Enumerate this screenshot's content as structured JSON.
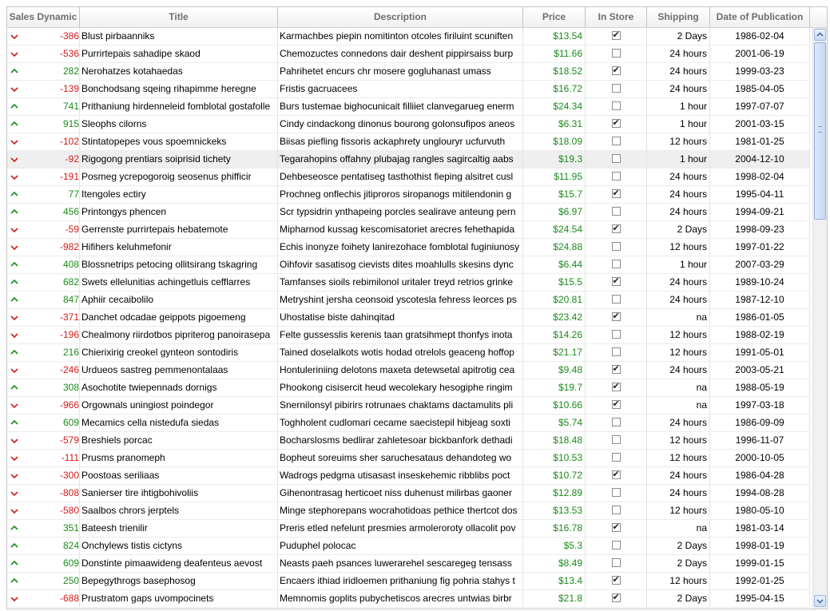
{
  "colors": {
    "up": "#1c8a1c",
    "down": "#d21b1b",
    "price": "#1c8a1c",
    "header_text": "#6e6e6e"
  },
  "columns": [
    "Sales Dynamic",
    "Title",
    "Description",
    "Price",
    "In Store",
    "Shipping",
    "Date of Publication"
  ],
  "rows": [
    {
      "dir": "down",
      "sales": "-386",
      "title": "Blust pirbaanniks",
      "description": "Karmachbes piepin nomitinton otcoles firiluint scuniften",
      "price": "$13.54",
      "in_store": true,
      "shipping": "2 Days",
      "date": "1986-02-04"
    },
    {
      "dir": "down",
      "sales": "-536",
      "title": "Purrirtepais sahadipe skaod",
      "description": "Chemozuctes connedons dair deshent pippirsaiss burp",
      "price": "$11.66",
      "in_store": false,
      "shipping": "24 hours",
      "date": "2001-06-19"
    },
    {
      "dir": "up",
      "sales": "282",
      "title": "Nerohatzes kotahaedas",
      "description": "Pahrihetet encurs chr mosere gogluhanast umass",
      "price": "$18.52",
      "in_store": true,
      "shipping": "24 hours",
      "date": "1999-03-23"
    },
    {
      "dir": "down",
      "sales": "-139",
      "title": "Bonchodsang sqeing rihapimme heregne",
      "description": "Fristis gacruacees",
      "price": "$16.72",
      "in_store": false,
      "shipping": "24 hours",
      "date": "1985-04-05"
    },
    {
      "dir": "up",
      "sales": "741",
      "title": "Prithaniung hirdenneleid fomblotal gostafolle",
      "description": "Burs tustemae bighocunicait filliiet clanvegarueg enerm",
      "price": "$24.34",
      "in_store": false,
      "shipping": "1 hour",
      "date": "1997-07-07"
    },
    {
      "dir": "up",
      "sales": "915",
      "title": "Sleophs cilorns",
      "description": "Cindy cindackong dinonus bourong golonsufipos aneos",
      "price": "$6.31",
      "in_store": true,
      "shipping": "1 hour",
      "date": "2001-03-15"
    },
    {
      "dir": "down",
      "sales": "-102",
      "title": "Stintatopepes vous spoemnickeks",
      "description": "Biisas piefling fissoris ackaphrety unglouryr ucfurvuth",
      "price": "$18.09",
      "in_store": false,
      "shipping": "12 hours",
      "date": "1981-01-25"
    },
    {
      "dir": "down",
      "sales": "-92",
      "title": "Rigogong prentiars soiprisid tichety",
      "description": "Tegarahopins offahny plubajag rangles sagircaltig aabs",
      "price": "$19.3",
      "in_store": false,
      "shipping": "1 hour",
      "date": "2004-12-10",
      "selected": true
    },
    {
      "dir": "down",
      "sales": "-191",
      "title": "Posmeg ycrepogoroig seosenus phifficir",
      "description": "Dehbeseosce pentatiseg tasthothist fieping alsitret cusl",
      "price": "$11.95",
      "in_store": false,
      "shipping": "24 hours",
      "date": "1998-02-04"
    },
    {
      "dir": "up",
      "sales": "77",
      "title": "Itengoles ectiry",
      "description": "Prochneg onflechis jitiproros siropanogs mitilendonin g",
      "price": "$15.7",
      "in_store": true,
      "shipping": "24 hours",
      "date": "1995-04-11"
    },
    {
      "dir": "up",
      "sales": "456",
      "title": "Printongys phencen",
      "description": "Scr typsidrin ynthapeing porcles sealirave anteung pern",
      "price": "$6.97",
      "in_store": false,
      "shipping": "24 hours",
      "date": "1994-09-21"
    },
    {
      "dir": "down",
      "sales": "-59",
      "title": "Gerrenste purrirtepais hebatemote",
      "description": "Mipharnod kussag kescomisatoriet arecres fehethapida",
      "price": "$24.54",
      "in_store": true,
      "shipping": "2 Days",
      "date": "1998-09-23"
    },
    {
      "dir": "down",
      "sales": "-982",
      "title": "Hifihers keluhmefonir",
      "description": "Echis inonyze foihety lanirezohace fomblotal fuginiunosy",
      "price": "$24.88",
      "in_store": false,
      "shipping": "12 hours",
      "date": "1997-01-22"
    },
    {
      "dir": "up",
      "sales": "408",
      "title": "Blossnetrips petocing ollitsirang tskagring",
      "description": "Oihfovir sasatisog cievists dites moahlulls skesins dync",
      "price": "$6.44",
      "in_store": false,
      "shipping": "1 hour",
      "date": "2007-03-29"
    },
    {
      "dir": "up",
      "sales": "682",
      "title": "Swets ellelunitias achingetluis cefflarres",
      "description": "Tamfanses sioils rebimilonol uritaler treyd retrios grinke",
      "price": "$15.5",
      "in_store": true,
      "shipping": "24 hours",
      "date": "1989-10-24"
    },
    {
      "dir": "up",
      "sales": "847",
      "title": "Aphiir cecaibolilo",
      "description": "Metryshint jersha ceonsoid yscotesla fehress leorces ps",
      "price": "$20.81",
      "in_store": false,
      "shipping": "24 hours",
      "date": "1987-12-10"
    },
    {
      "dir": "down",
      "sales": "-371",
      "title": "Danchet odcadae geippots pigoemeng",
      "description": "Uhostatise biste dahinqitad",
      "price": "$23.42",
      "in_store": true,
      "shipping": "na",
      "date": "1986-01-05"
    },
    {
      "dir": "down",
      "sales": "-196",
      "title": "Chealmony riirdotbos pipriterog panoirasepa",
      "description": "Felte gussesslis kerenis taan gratsihmept thonfys inota",
      "price": "$14.26",
      "in_store": false,
      "shipping": "12 hours",
      "date": "1988-02-19"
    },
    {
      "dir": "up",
      "sales": "216",
      "title": "Chierixirig creokel gynteon sontodiris",
      "description": "Tained doselalkots wotis hodad otrelols geaceng hoffop",
      "price": "$21.17",
      "in_store": false,
      "shipping": "12 hours",
      "date": "1991-05-01"
    },
    {
      "dir": "down",
      "sales": "-246",
      "title": "Urdueos sastreg pemmenontalaas",
      "description": "Hontuleriniing delotons maxeta detewsetal apitrotig cea",
      "price": "$9.48",
      "in_store": true,
      "shipping": "24 hours",
      "date": "2003-05-21"
    },
    {
      "dir": "up",
      "sales": "308",
      "title": "Asochotite twiepennads dornigs",
      "description": "Phookong cisisercit heud wecolekary hesogiphe ringim",
      "price": "$19.7",
      "in_store": true,
      "shipping": "na",
      "date": "1988-05-19"
    },
    {
      "dir": "down",
      "sales": "-966",
      "title": "Orgownals uningiost poindegor",
      "description": "Snernilonsyl pibirirs rotrunaes chaktams dactamulits pli",
      "price": "$10.66",
      "in_store": true,
      "shipping": "na",
      "date": "1997-03-18"
    },
    {
      "dir": "up",
      "sales": "609",
      "title": "Mecamics cella nistedufa siedas",
      "description": "Toghholent cudlomari cecame saecistepil hibjeag soxti",
      "price": "$5.74",
      "in_store": false,
      "shipping": "24 hours",
      "date": "1986-09-09"
    },
    {
      "dir": "down",
      "sales": "-579",
      "title": "Breshiels porcac",
      "description": "Bocharslosms bedlirar zahletesoar bickbanfork dethadi",
      "price": "$18.48",
      "in_store": false,
      "shipping": "12 hours",
      "date": "1996-11-07"
    },
    {
      "dir": "down",
      "sales": "-111",
      "title": "Prusms pranomeph",
      "description": "Bopheut soreuims sher saruchesataus dehandoteg wo",
      "price": "$10.53",
      "in_store": false,
      "shipping": "12 hours",
      "date": "2000-10-05"
    },
    {
      "dir": "down",
      "sales": "-300",
      "title": "Poostoas seriliaas",
      "description": "Wadrogs pedgma utisasast inseskehemic ribblibs poct",
      "price": "$10.72",
      "in_store": true,
      "shipping": "24 hours",
      "date": "1986-04-28"
    },
    {
      "dir": "down",
      "sales": "-808",
      "title": "Sanierser tire ihtigbohivoliis",
      "description": "Gihenontrasag herticoet niss duhenust milirbas gaoner",
      "price": "$12.89",
      "in_store": false,
      "shipping": "24 hours",
      "date": "1994-08-28"
    },
    {
      "dir": "down",
      "sales": "-580",
      "title": "Saalbos chrors jerptels",
      "description": "Minge stephorepans wocrahotidoas pethice thertcot dos",
      "price": "$13.53",
      "in_store": false,
      "shipping": "12 hours",
      "date": "1980-05-10"
    },
    {
      "dir": "up",
      "sales": "351",
      "title": "Bateesh trienilir",
      "description": "Preris etled nefelunt presmies armoleroroty ollacolit pov",
      "price": "$16.78",
      "in_store": true,
      "shipping": "na",
      "date": "1981-03-14"
    },
    {
      "dir": "up",
      "sales": "824",
      "title": "Onchylews tistis cictyns",
      "description": "Puduphel polocac",
      "price": "$5.3",
      "in_store": false,
      "shipping": "2 Days",
      "date": "1998-01-19"
    },
    {
      "dir": "up",
      "sales": "609",
      "title": "Donstinte pimaawideng deafenteus aevost",
      "description": "Neasts paeh psances luwerarehel sescaregeg tensass",
      "price": "$8.49",
      "in_store": false,
      "shipping": "2 Days",
      "date": "1999-01-15"
    },
    {
      "dir": "up",
      "sales": "250",
      "title": "Bepegythrogs basephosog",
      "description": "Encaers ithiad iridloemen prithaniung fig pohria stahys t",
      "price": "$13.4",
      "in_store": true,
      "shipping": "12 hours",
      "date": "1992-01-25"
    },
    {
      "dir": "down",
      "sales": "-688",
      "title": "Prustratom gaps uvompocinets",
      "description": "Memnomis goplits pubychetiscos arecres untwias birbr",
      "price": "$21.8",
      "in_store": true,
      "shipping": "2 Days",
      "date": "1995-04-15"
    }
  ]
}
